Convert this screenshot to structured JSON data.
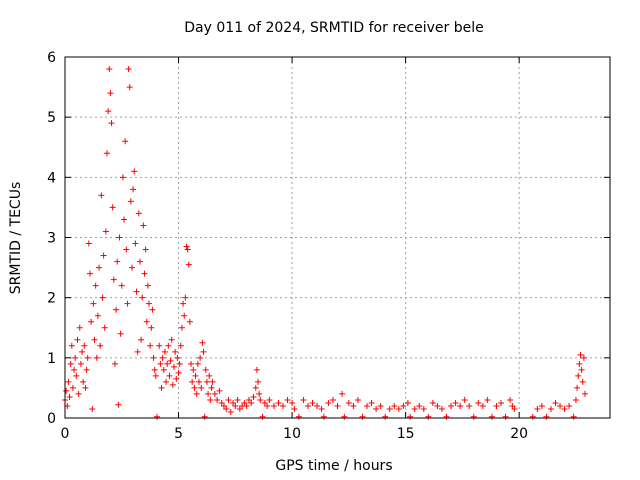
{
  "chart_data": {
    "type": "scatter",
    "title": "Day 011 of 2024, SRMTID for receiver bele",
    "xlabel": "GPS time / hours",
    "ylabel": "SRMTID / TECUs",
    "xlim": [
      0,
      24
    ],
    "ylim": [
      0,
      6
    ],
    "xticks": [
      0,
      5,
      10,
      15,
      20
    ],
    "yticks": [
      0,
      1,
      2,
      3,
      4,
      5,
      6
    ],
    "grid": true,
    "marker": "+",
    "color": "#ff0000",
    "series": [
      {
        "name": "SRMTID",
        "points": [
          [
            0.0,
            0.3
          ],
          [
            0.05,
            0.45
          ],
          [
            0.1,
            0.2
          ],
          [
            0.15,
            0.6
          ],
          [
            0.2,
            0.35
          ],
          [
            0.25,
            0.9
          ],
          [
            0.3,
            1.2
          ],
          [
            0.35,
            0.5
          ],
          [
            0.4,
            0.8
          ],
          [
            0.45,
            1.0
          ],
          [
            0.5,
            0.7
          ],
          [
            0.55,
            1.3
          ],
          [
            0.6,
            0.4
          ],
          [
            0.65,
            1.5
          ],
          [
            0.7,
            0.9
          ],
          [
            0.75,
            1.1
          ],
          [
            0.8,
            0.6
          ],
          [
            0.85,
            1.2
          ],
          [
            0.9,
            0.5
          ],
          [
            0.95,
            0.8
          ],
          [
            1.0,
            1.0
          ],
          [
            1.05,
            2.9
          ],
          [
            1.1,
            2.4
          ],
          [
            1.15,
            1.6
          ],
          [
            1.2,
            0.15
          ],
          [
            1.25,
            1.9
          ],
          [
            1.3,
            1.3
          ],
          [
            1.35,
            2.2
          ],
          [
            1.4,
            1.0
          ],
          [
            1.45,
            1.7
          ],
          [
            1.5,
            2.5
          ],
          [
            1.55,
            1.2
          ],
          [
            1.6,
            3.7
          ],
          [
            1.65,
            2.0
          ],
          [
            1.7,
            2.7
          ],
          [
            1.75,
            1.5
          ],
          [
            1.8,
            3.1
          ],
          [
            1.85,
            4.4
          ],
          [
            1.9,
            5.1
          ],
          [
            1.95,
            5.8
          ],
          [
            2.0,
            5.4
          ],
          [
            2.05,
            4.9
          ],
          [
            2.1,
            3.5
          ],
          [
            2.15,
            2.3
          ],
          [
            2.2,
            0.9
          ],
          [
            2.25,
            1.8
          ],
          [
            2.3,
            2.6
          ],
          [
            2.35,
            0.22
          ],
          [
            2.4,
            3.0
          ],
          [
            2.45,
            1.4
          ],
          [
            2.5,
            2.2
          ],
          [
            2.55,
            4.0
          ],
          [
            2.6,
            3.3
          ],
          [
            2.65,
            4.6
          ],
          [
            2.7,
            2.8
          ],
          [
            2.75,
            1.9
          ],
          [
            2.8,
            5.8
          ],
          [
            2.85,
            5.5
          ],
          [
            2.9,
            3.6
          ],
          [
            2.95,
            2.5
          ],
          [
            3.0,
            3.8
          ],
          [
            3.05,
            4.1
          ],
          [
            3.1,
            2.9
          ],
          [
            3.15,
            2.1
          ],
          [
            3.2,
            1.1
          ],
          [
            3.25,
            3.4
          ],
          [
            3.3,
            2.6
          ],
          [
            3.35,
            1.3
          ],
          [
            3.4,
            2.0
          ],
          [
            3.45,
            3.2
          ],
          [
            3.5,
            2.4
          ],
          [
            3.55,
            2.8
          ],
          [
            3.6,
            1.6
          ],
          [
            3.65,
            2.2
          ],
          [
            3.7,
            1.9
          ],
          [
            3.75,
            1.2
          ],
          [
            3.8,
            1.5
          ],
          [
            3.85,
            1.8
          ],
          [
            3.9,
            1.0
          ],
          [
            3.95,
            0.8
          ],
          [
            4.0,
            0.7
          ],
          [
            4.05,
            0.02
          ],
          [
            4.15,
            1.2
          ],
          [
            4.2,
            0.9
          ],
          [
            4.25,
            0.5
          ],
          [
            4.3,
            1.0
          ],
          [
            4.35,
            0.8
          ],
          [
            4.4,
            1.1
          ],
          [
            4.45,
            0.6
          ],
          [
            4.5,
            0.9
          ],
          [
            4.55,
            1.2
          ],
          [
            4.6,
            0.7
          ],
          [
            4.65,
            0.95
          ],
          [
            4.7,
            1.3
          ],
          [
            4.75,
            0.55
          ],
          [
            4.8,
            0.85
          ],
          [
            4.85,
            1.1
          ],
          [
            4.9,
            0.65
          ],
          [
            4.95,
            1.0
          ],
          [
            5.0,
            0.75
          ],
          [
            5.05,
            0.9
          ],
          [
            5.1,
            1.2
          ],
          [
            5.15,
            1.5
          ],
          [
            5.2,
            1.9
          ],
          [
            5.25,
            1.7
          ],
          [
            5.3,
            2.0
          ],
          [
            5.35,
            2.85
          ],
          [
            5.4,
            2.8
          ],
          [
            5.45,
            2.55
          ],
          [
            5.5,
            1.6
          ],
          [
            5.55,
            0.9
          ],
          [
            5.6,
            0.6
          ],
          [
            5.65,
            0.8
          ],
          [
            5.7,
            0.5
          ],
          [
            5.75,
            0.7
          ],
          [
            5.8,
            0.4
          ],
          [
            5.85,
            0.9
          ],
          [
            5.9,
            0.6
          ],
          [
            5.95,
            1.0
          ],
          [
            6.0,
            0.5
          ],
          [
            6.05,
            1.25
          ],
          [
            6.1,
            1.1
          ],
          [
            6.15,
            0.02
          ],
          [
            6.2,
            0.8
          ],
          [
            6.25,
            0.6
          ],
          [
            6.3,
            0.4
          ],
          [
            6.35,
            0.7
          ],
          [
            6.4,
            0.3
          ],
          [
            6.45,
            0.5
          ],
          [
            6.5,
            0.6
          ],
          [
            6.6,
            0.4
          ],
          [
            6.7,
            0.3
          ],
          [
            6.8,
            0.45
          ],
          [
            6.9,
            0.25
          ],
          [
            7.0,
            0.2
          ],
          [
            7.1,
            0.15
          ],
          [
            7.2,
            0.3
          ],
          [
            7.3,
            0.1
          ],
          [
            7.4,
            0.25
          ],
          [
            7.5,
            0.2
          ],
          [
            7.6,
            0.3
          ],
          [
            7.7,
            0.15
          ],
          [
            7.8,
            0.2
          ],
          [
            7.9,
            0.25
          ],
          [
            8.0,
            0.2
          ],
          [
            8.1,
            0.3
          ],
          [
            8.2,
            0.25
          ],
          [
            8.3,
            0.35
          ],
          [
            8.4,
            0.5
          ],
          [
            8.45,
            0.8
          ],
          [
            8.5,
            0.6
          ],
          [
            8.55,
            0.4
          ],
          [
            8.6,
            0.3
          ],
          [
            8.7,
            0.02
          ],
          [
            8.8,
            0.25
          ],
          [
            8.9,
            0.2
          ],
          [
            9.0,
            0.3
          ],
          [
            9.2,
            0.2
          ],
          [
            9.4,
            0.25
          ],
          [
            9.6,
            0.2
          ],
          [
            9.8,
            0.3
          ],
          [
            10.0,
            0.25
          ],
          [
            10.1,
            0.15
          ],
          [
            10.3,
            0.02
          ],
          [
            10.5,
            0.3
          ],
          [
            10.7,
            0.2
          ],
          [
            10.9,
            0.25
          ],
          [
            11.1,
            0.2
          ],
          [
            11.3,
            0.15
          ],
          [
            11.4,
            0.02
          ],
          [
            11.6,
            0.25
          ],
          [
            11.8,
            0.3
          ],
          [
            12.0,
            0.2
          ],
          [
            12.2,
            0.4
          ],
          [
            12.3,
            0.02
          ],
          [
            12.5,
            0.25
          ],
          [
            12.7,
            0.2
          ],
          [
            12.9,
            0.3
          ],
          [
            13.1,
            0.02
          ],
          [
            13.3,
            0.2
          ],
          [
            13.5,
            0.25
          ],
          [
            13.7,
            0.15
          ],
          [
            13.9,
            0.2
          ],
          [
            14.1,
            0.02
          ],
          [
            14.3,
            0.15
          ],
          [
            14.5,
            0.2
          ],
          [
            14.7,
            0.15
          ],
          [
            14.9,
            0.2
          ],
          [
            15.1,
            0.25
          ],
          [
            15.2,
            0.02
          ],
          [
            15.4,
            0.15
          ],
          [
            15.6,
            0.2
          ],
          [
            15.8,
            0.15
          ],
          [
            16.0,
            0.02
          ],
          [
            16.2,
            0.25
          ],
          [
            16.4,
            0.2
          ],
          [
            16.6,
            0.15
          ],
          [
            16.8,
            0.02
          ],
          [
            17.0,
            0.2
          ],
          [
            17.2,
            0.25
          ],
          [
            17.4,
            0.2
          ],
          [
            17.6,
            0.3
          ],
          [
            17.8,
            0.2
          ],
          [
            18.0,
            0.02
          ],
          [
            18.2,
            0.25
          ],
          [
            18.4,
            0.2
          ],
          [
            18.6,
            0.3
          ],
          [
            18.8,
            0.02
          ],
          [
            19.0,
            0.2
          ],
          [
            19.2,
            0.25
          ],
          [
            19.4,
            0.02
          ],
          [
            19.6,
            0.3
          ],
          [
            19.7,
            0.2
          ],
          [
            19.8,
            0.15
          ],
          [
            20.6,
            0.02
          ],
          [
            20.8,
            0.15
          ],
          [
            21.0,
            0.2
          ],
          [
            21.2,
            0.02
          ],
          [
            21.4,
            0.15
          ],
          [
            21.6,
            0.25
          ],
          [
            21.8,
            0.2
          ],
          [
            22.0,
            0.15
          ],
          [
            22.2,
            0.2
          ],
          [
            22.4,
            0.02
          ],
          [
            22.5,
            0.3
          ],
          [
            22.55,
            0.5
          ],
          [
            22.6,
            0.7
          ],
          [
            22.65,
            0.9
          ],
          [
            22.7,
            1.05
          ],
          [
            22.75,
            0.8
          ],
          [
            22.8,
            0.6
          ],
          [
            22.85,
            1.0
          ],
          [
            22.9,
            0.4
          ]
        ]
      }
    ]
  }
}
